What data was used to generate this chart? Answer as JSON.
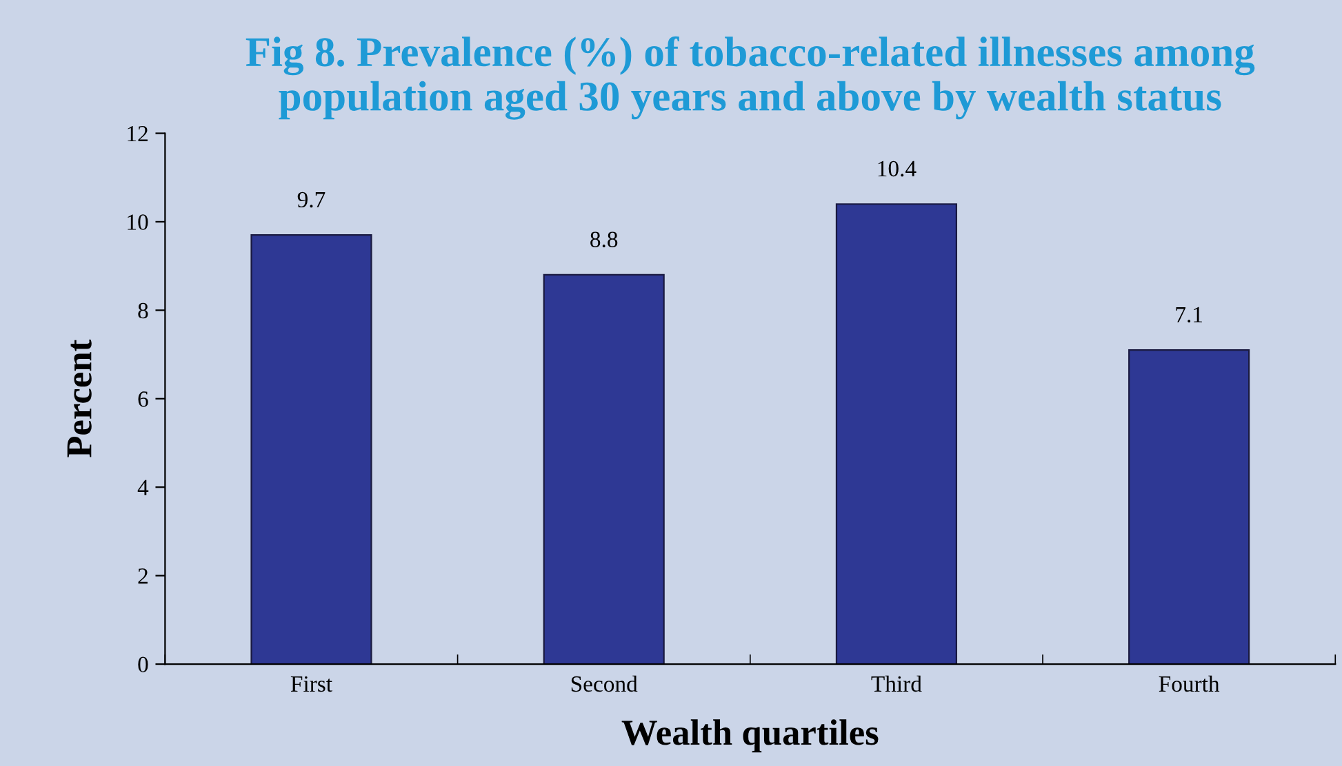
{
  "chart_data": {
    "type": "bar",
    "title": "Fig 8. Prevalence (%) of tobacco-related illnesses among\npopulation aged 30 years and above by wealth status",
    "xlabel": "Wealth quartiles",
    "ylabel": "Percent",
    "categories": [
      "First",
      "Second",
      "Third",
      "Fourth"
    ],
    "values": [
      9.7,
      8.8,
      10.4,
      7.1
    ],
    "color": "#2e3894",
    "ylim": [
      0,
      12
    ],
    "yticks": [
      0,
      2,
      4,
      6,
      8,
      10,
      12
    ],
    "grid": false,
    "data_labels": true
  }
}
